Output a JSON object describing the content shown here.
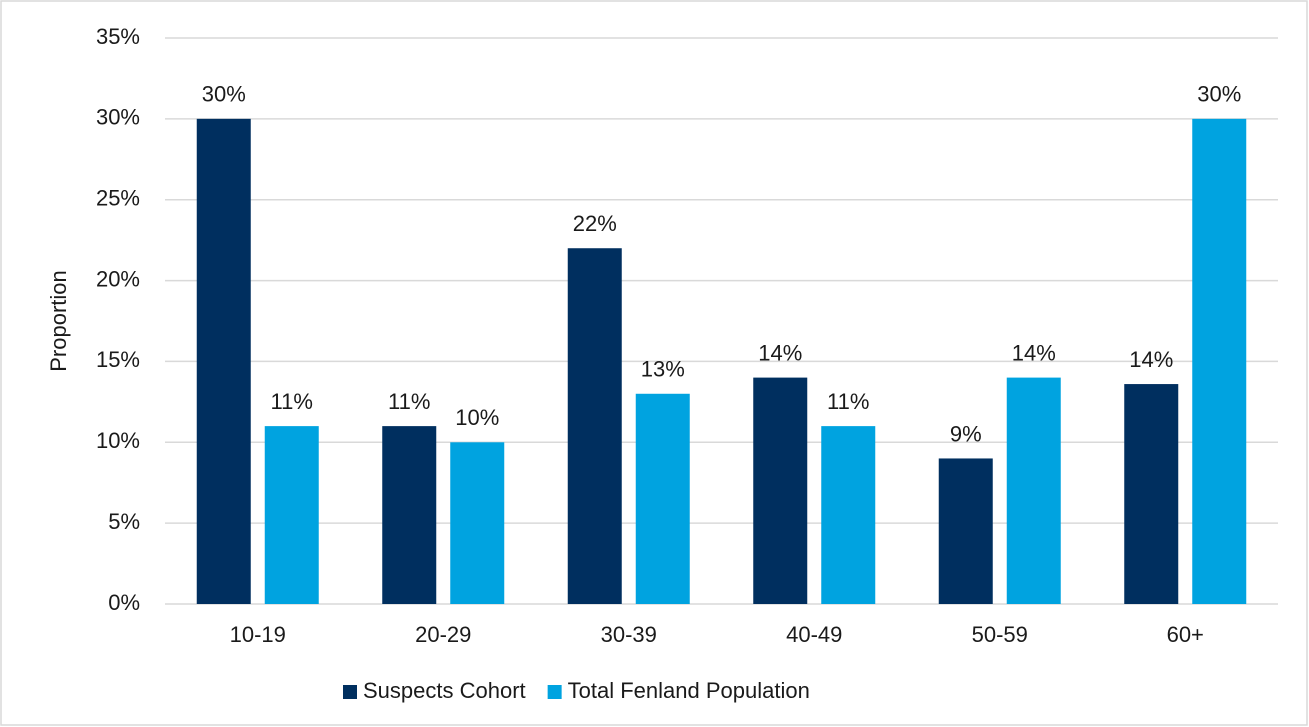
{
  "chart_data": {
    "type": "bar",
    "y_label": "Proportion",
    "categories": [
      "10-19",
      "20-29",
      "30-39",
      "40-49",
      "50-59",
      "60+"
    ],
    "series": [
      {
        "name": "Suspects Cohort",
        "color": "#002f5f",
        "values": [
          30,
          11,
          22,
          14,
          9,
          13.6
        ],
        "value_labels": [
          "30%",
          "11%",
          "22%",
          "14%",
          "9%",
          "14%"
        ]
      },
      {
        "name": "Total Fenland Population",
        "color": "#00a3e0",
        "values": [
          11,
          10,
          13,
          11,
          14,
          30
        ],
        "value_labels": [
          "11%",
          "10%",
          "13%",
          "11%",
          "14%",
          "30%"
        ]
      }
    ],
    "ylim": [
      0,
      35
    ],
    "yticks": [
      {
        "value": 0,
        "label": "0%"
      },
      {
        "value": 5,
        "label": "5%"
      },
      {
        "value": 10,
        "label": "10%"
      },
      {
        "value": 15,
        "label": "15%"
      },
      {
        "value": 20,
        "label": "20%"
      },
      {
        "value": 25,
        "label": "25%"
      },
      {
        "value": 30,
        "label": "30%"
      },
      {
        "value": 35,
        "label": "35%"
      }
    ],
    "grid": true,
    "legend": "bottom"
  }
}
